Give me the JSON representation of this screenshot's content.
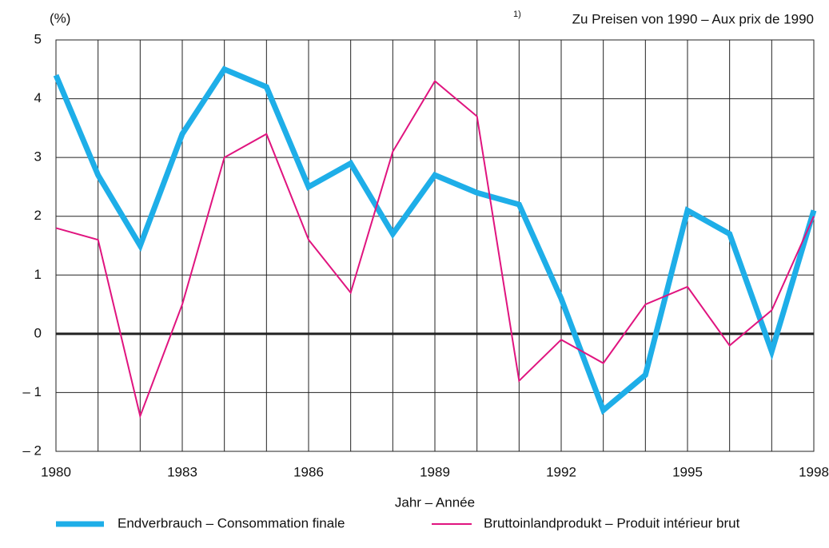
{
  "chart_data": {
    "type": "line",
    "y_axis_label": "(%)",
    "footnote_marker": "1)",
    "footnote": "Zu Preisen von 1990 – Aux prix de 1990",
    "x_axis_label": "Jahr – Année",
    "x": [
      1980,
      1981,
      1982,
      1983,
      1984,
      1985,
      1986,
      1987,
      1988,
      1989,
      1990,
      1991,
      1992,
      1993,
      1994,
      1995,
      1996,
      1997,
      1998
    ],
    "series": [
      {
        "name": "Endverbrauch – Consommation finale",
        "color": "#1eaee8",
        "width": 7,
        "values": [
          4.4,
          2.7,
          1.5,
          3.4,
          4.5,
          4.2,
          2.5,
          2.9,
          1.7,
          2.7,
          2.4,
          2.2,
          0.6,
          -1.3,
          -0.7,
          2.1,
          1.7,
          -0.3,
          2.1
        ]
      },
      {
        "name": "Bruttoinlandprodukt – Produit intérieur brut",
        "color": "#e0147f",
        "width": 2,
        "values": [
          1.8,
          1.6,
          -1.4,
          0.5,
          3.0,
          3.4,
          1.6,
          0.7,
          3.1,
          4.3,
          3.7,
          -0.8,
          -0.1,
          -0.5,
          0.5,
          0.8,
          -0.2,
          0.4,
          2.0
        ]
      }
    ],
    "xlim": [
      1980,
      1998
    ],
    "xticks": [
      1980,
      1983,
      1986,
      1989,
      1992,
      1995,
      1998
    ],
    "ylim": [
      -2,
      5
    ],
    "yticks": [
      {
        "value": -2,
        "label": "– 2"
      },
      {
        "value": -1,
        "label": "– 1"
      },
      0,
      1,
      2,
      3,
      4,
      5
    ],
    "grid": true
  }
}
